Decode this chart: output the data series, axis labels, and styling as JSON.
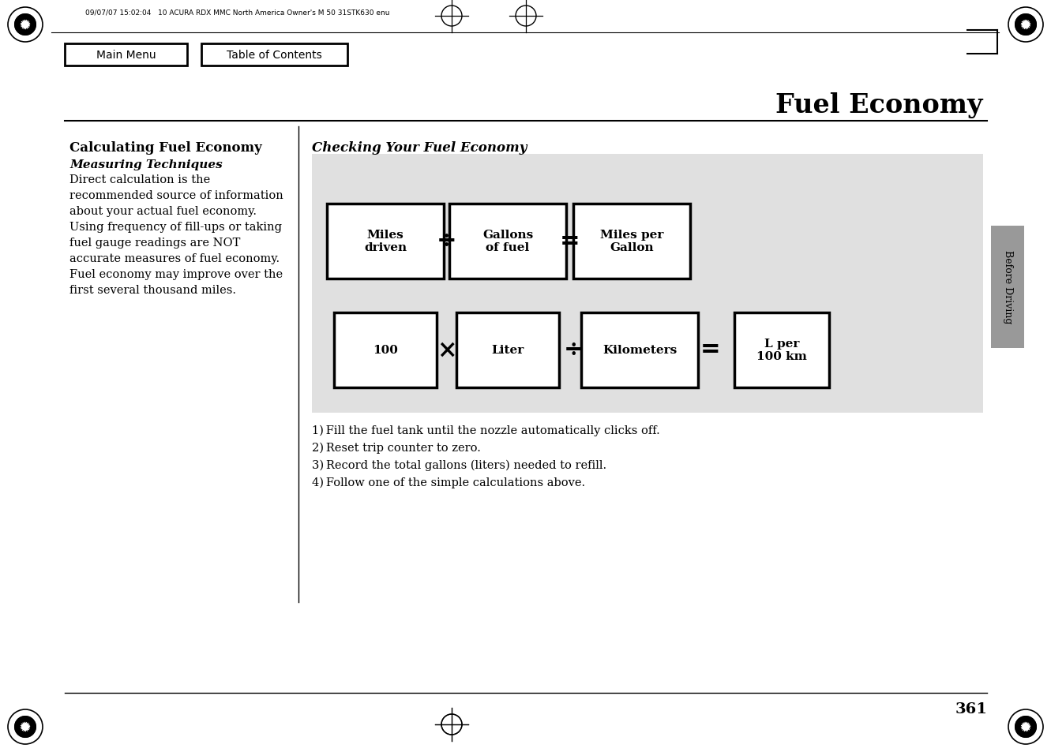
{
  "page_title": "Fuel Economy",
  "header_text": "09/07/07 15:02:04   10 ACURA RDX MMC North America Owner's M 50 31STK630 enu",
  "nav_button1": "Main Menu",
  "nav_button2": "Table of Contents",
  "left_section_title": "Calculating Fuel Economy",
  "left_subsection_title": "Measuring Techniques",
  "left_body_text": "Direct calculation is the\nrecommended source of information\nabout your actual fuel economy.\nUsing frequency of fill-ups or taking\nfuel gauge readings are NOT\naccurate measures of fuel economy.\nFuel economy may improve over the\nfirst several thousand miles.",
  "right_section_title": "Checking Your Fuel Economy",
  "diagram_bg": "#e0e0e0",
  "row1_boxes": [
    "Miles\ndriven",
    "Gallons\nof fuel",
    "Miles per\nGallon"
  ],
  "row1_ops": [
    "÷",
    "="
  ],
  "row2_boxes": [
    "100",
    "Liter",
    "Kilometers",
    "L per\n100 km"
  ],
  "row2_ops": [
    "×",
    "÷",
    "="
  ],
  "footer_lines": [
    "1) Fill the fuel tank until the nozzle automatically clicks off.",
    "2) Reset trip counter to zero.",
    "3) Record the total gallons (liters) needed to refill.",
    "4) Follow one of the simple calculations above."
  ],
  "page_number": "361",
  "sidebar_label": "Before Driving",
  "bg_color": "#ffffff",
  "text_color": "#000000",
  "box_border_color": "#000000",
  "box_bg_color": "#ffffff",
  "sidebar_color": "#999999"
}
